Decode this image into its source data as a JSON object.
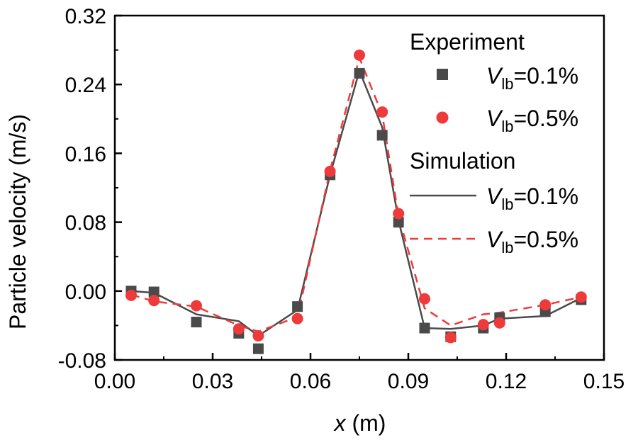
{
  "chart_data": {
    "type": "scatter",
    "xlabel": {
      "italic": "x",
      "rest": " (m)"
    },
    "ylabel": "Particle velocity (m/s)",
    "xlim": [
      0.0,
      0.15
    ],
    "ylim": [
      -0.08,
      0.32
    ],
    "xticks": [
      0.0,
      0.03,
      0.06,
      0.09,
      0.12,
      0.15
    ],
    "yticks": [
      -0.08,
      0.0,
      0.08,
      0.16,
      0.24,
      0.32
    ],
    "xtick_labels": [
      "0.00",
      "0.03",
      "0.06",
      "0.09",
      "0.12",
      "0.15"
    ],
    "ytick_labels": [
      "-0.08",
      "0.00",
      "0.08",
      "0.16",
      "0.24",
      "0.32"
    ],
    "legend": {
      "experiment_header": "Experiment",
      "simulation_header": "Simulation",
      "entries": [
        {
          "italic": "V",
          "sub": "lb",
          "rest": "=0.1%"
        },
        {
          "italic": "V",
          "sub": "lb",
          "rest": "=0.5%"
        },
        {
          "italic": "V",
          "sub": "lb",
          "rest": "=0.1%"
        },
        {
          "italic": "V",
          "sub": "lb",
          "rest": "=0.5%"
        }
      ]
    },
    "series": [
      {
        "name": "Experiment Vlb=0.1%",
        "kind": "scatter",
        "marker": "square",
        "color": "#4a4a4a",
        "x": [
          0.005,
          0.012,
          0.025,
          0.038,
          0.044,
          0.056,
          0.066,
          0.075,
          0.082,
          0.087,
          0.095,
          0.103,
          0.113,
          0.118,
          0.132,
          0.143
        ],
        "y": [
          0.0,
          -0.001,
          -0.036,
          -0.049,
          -0.067,
          -0.018,
          0.135,
          0.253,
          0.181,
          0.08,
          -0.043,
          -0.053,
          -0.043,
          -0.031,
          -0.024,
          -0.01
        ]
      },
      {
        "name": "Experiment Vlb=0.5%",
        "kind": "scatter",
        "marker": "circle",
        "color": "#ee3a3a",
        "x": [
          0.005,
          0.012,
          0.025,
          0.038,
          0.044,
          0.056,
          0.066,
          0.075,
          0.082,
          0.087,
          0.095,
          0.103,
          0.113,
          0.118,
          0.132,
          0.143
        ],
        "y": [
          -0.005,
          -0.011,
          -0.017,
          -0.044,
          -0.052,
          -0.032,
          0.139,
          0.274,
          0.208,
          0.09,
          -0.009,
          -0.054,
          -0.039,
          -0.037,
          -0.016,
          -0.007
        ]
      },
      {
        "name": "Simulation Vlb=0.1%",
        "kind": "line",
        "style": "solid",
        "color": "#4a4a4a",
        "x": [
          0.005,
          0.012,
          0.025,
          0.038,
          0.044,
          0.056,
          0.066,
          0.075,
          0.082,
          0.087,
          0.095,
          0.103,
          0.113,
          0.118,
          0.132,
          0.143
        ],
        "y": [
          0.0,
          -0.002,
          -0.027,
          -0.035,
          -0.052,
          -0.022,
          0.135,
          0.256,
          0.19,
          0.082,
          -0.043,
          -0.044,
          -0.04,
          -0.032,
          -0.029,
          -0.008
        ]
      },
      {
        "name": "Simulation Vlb=0.5%",
        "kind": "line",
        "style": "dashed",
        "color": "#ee3a3a",
        "x": [
          0.005,
          0.012,
          0.025,
          0.038,
          0.044,
          0.056,
          0.066,
          0.075,
          0.082,
          0.087,
          0.095,
          0.103,
          0.113,
          0.118,
          0.132,
          0.143
        ],
        "y": [
          -0.004,
          -0.012,
          -0.018,
          -0.04,
          -0.047,
          -0.03,
          0.14,
          0.271,
          0.205,
          0.087,
          -0.02,
          -0.04,
          -0.027,
          -0.025,
          -0.016,
          -0.007
        ]
      }
    ]
  }
}
